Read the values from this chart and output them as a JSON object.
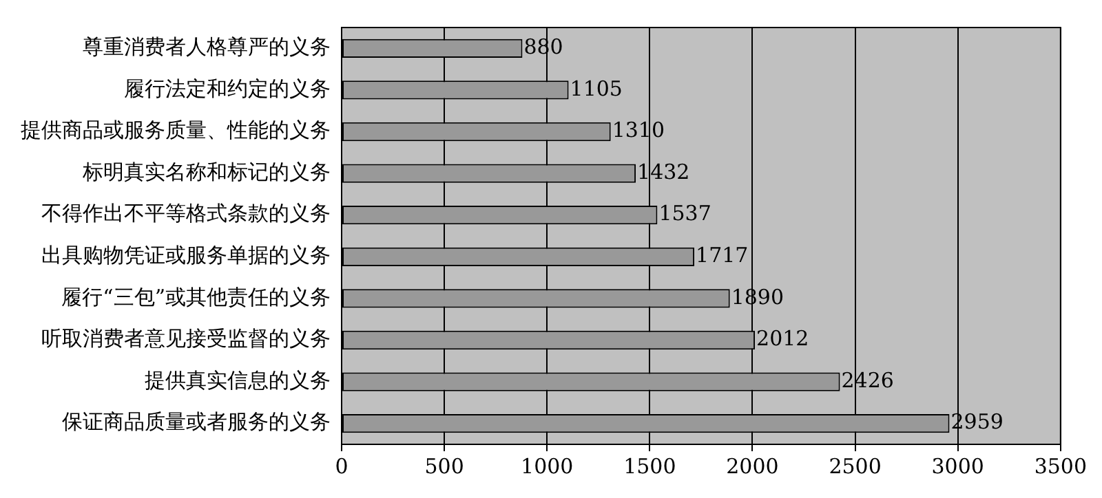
{
  "chart_data": {
    "type": "bar",
    "orientation": "horizontal",
    "categories": [
      "尊重消费者人格尊严的义务",
      "履行法定和约定的义务",
      "提供商品或服务质量、性能的义务",
      "标明真实名称和标记的义务",
      "不得作出不平等格式条款的义务",
      "出具购物凭证或服务单据的义务",
      "履行“三包”或其他责任的义务",
      "听取消费者意见接受监督的义务",
      "提供真实信息的义务",
      "保证商品质量或者服务的义务"
    ],
    "values": [
      880,
      1105,
      1310,
      1432,
      1537,
      1717,
      1890,
      2012,
      2426,
      2959
    ],
    "color": "#999999",
    "xlim": [
      0,
      3500
    ],
    "xticks": [
      0,
      500,
      1000,
      1500,
      2000,
      2500,
      3000,
      3500
    ],
    "grid": "x",
    "legend": false,
    "data_labels": true
  }
}
